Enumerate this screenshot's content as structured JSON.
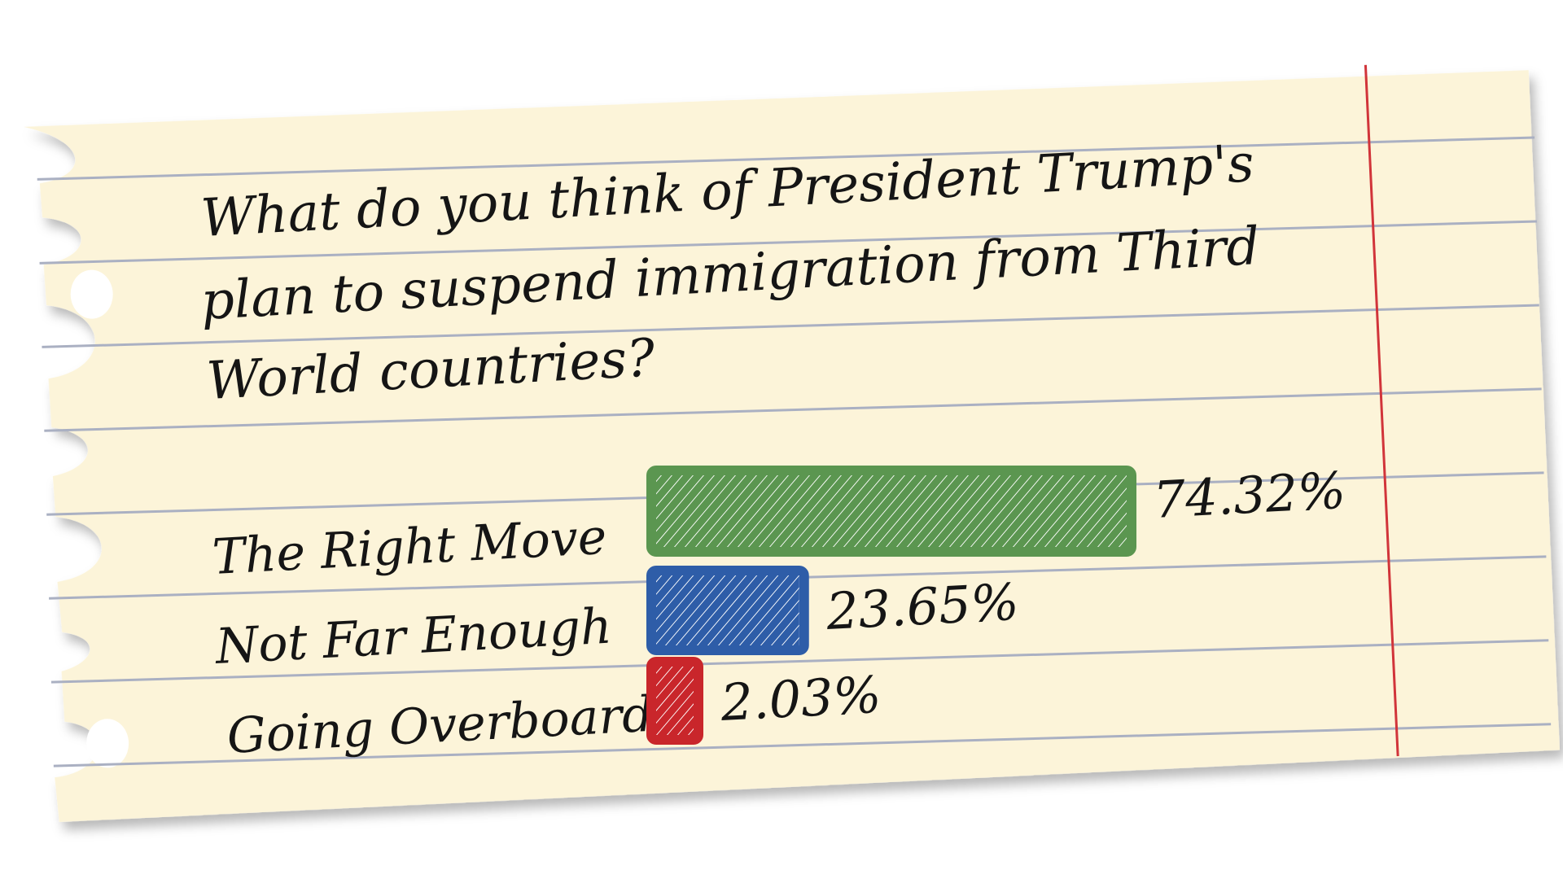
{
  "chart_data": {
    "type": "bar",
    "orientation": "horizontal",
    "title": "What do you think of President Trump's plan to suspend immigration from Third World countries?",
    "title_lines": [
      "What do you think of President Trump's",
      "plan to suspend immigration from Third",
      "World countries?"
    ],
    "categories": [
      "The Right Move",
      "Not Far Enough",
      "Going Overboard"
    ],
    "values": [
      74.32,
      23.65,
      2.03
    ],
    "value_labels": [
      "74.32%",
      "23.65%",
      "2.03%"
    ],
    "colors": [
      "#5b9650",
      "#2e5da8",
      "#c9262b"
    ],
    "xlim": [
      0,
      74.32
    ],
    "grid": false,
    "legend": "none"
  },
  "colors": {
    "paper": "#fcf4d9",
    "rule_lines": "#aab0c2",
    "margin_line": "#d1343a",
    "ink": "#151515"
  }
}
